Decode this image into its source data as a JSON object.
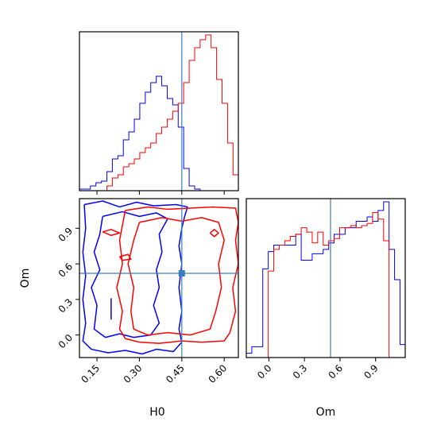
{
  "chart_data": {
    "type": "corner",
    "parameters": [
      "H0",
      "Om"
    ],
    "axis_labels": {
      "x": [
        "H0",
        "Om"
      ],
      "y": [
        "Om"
      ]
    },
    "truths": {
      "H0": 0.45,
      "Om": 0.52
    },
    "ranges": {
      "H0": [
        0.088,
        0.65
      ],
      "Om": [
        -0.19,
        1.15
      ]
    },
    "ticks": {
      "H0": {
        "values": [
          0.15,
          0.3,
          0.45,
          0.6
        ],
        "labels": [
          "0.15",
          "0.30",
          "0.45",
          "0.60"
        ]
      },
      "Om": {
        "values": [
          0.0,
          0.3,
          0.6,
          0.9
        ],
        "labels": [
          "0.0",
          "0.3",
          "0.6",
          "0.9"
        ]
      }
    },
    "colors": {
      "series_a": "#0000ff",
      "series_b": "#ff0000",
      "truth_line": "#3a7ebf"
    },
    "histograms": {
      "H0": {
        "edges": [
          0.088,
          0.1074,
          0.1268,
          0.1462,
          0.1656,
          0.185,
          0.2044,
          0.2238,
          0.2432,
          0.2626,
          0.282,
          0.3014,
          0.3208,
          0.3402,
          0.3596,
          0.379,
          0.3984,
          0.4178,
          0.4372,
          0.4566,
          0.476,
          0.4954,
          0.5148,
          0.5342,
          0.5536,
          0.573,
          0.5924,
          0.6118,
          0.6312,
          0.65
        ],
        "series": [
          {
            "color": "#0000ff",
            "counts": [
              1,
              1,
              3,
              5,
              6,
              12,
              20,
              22,
              32,
              37,
              45,
              55,
              62,
              68,
              72,
              66,
              58,
              54,
              40,
              14,
              3,
              1,
              0,
              0,
              0,
              0,
              0,
              0,
              0
            ]
          },
          {
            "color": "#ff0000",
            "counts": [
              0,
              0,
              0,
              0,
              0,
              3,
              8,
              10,
              15,
              17,
              20,
              24,
              27,
              30,
              36,
              40,
              45,
              50,
              55,
              68,
              82,
              90,
              95,
              98,
              90,
              70,
              55,
              30,
              10
            ]
          }
        ]
      },
      "Om": {
        "edges": [
          -0.19,
          -0.1437,
          -0.0974,
          -0.0511,
          -0.0048,
          0.0415,
          0.0878,
          0.1341,
          0.1804,
          0.2267,
          0.273,
          0.3193,
          0.3656,
          0.4119,
          0.4582,
          0.5045,
          0.5508,
          0.5971,
          0.6434,
          0.6897,
          0.736,
          0.7823,
          0.8286,
          0.8749,
          0.9212,
          0.9675,
          1.0138,
          1.0601,
          1.1064,
          1.15
        ],
        "series": [
          {
            "color": "#0000ff",
            "counts": [
              2,
              5,
              5,
              41,
              49,
              52,
              52,
              52,
              52,
              57,
              45,
              45,
              48,
              48,
              50,
              53,
              57,
              57,
              60,
              60,
              63,
              63,
              65,
              63,
              68,
              72,
              50,
              36,
              6
            ]
          },
          {
            "color": "#ff0000",
            "counts": [
              0,
              0,
              0,
              0,
              40,
              50,
              52,
              54,
              56,
              57,
              60,
              58,
              53,
              58,
              52,
              54,
              55,
              60,
              60,
              61,
              60,
              61,
              62,
              67,
              64,
              54,
              0,
              0,
              0
            ]
          }
        ]
      }
    },
    "contours": [
      {
        "series": "blue",
        "color": "#0000ff",
        "level": "outer",
        "points": [
          [
            0.105,
            1.1
          ],
          [
            0.17,
            1.13
          ],
          [
            0.23,
            1.08
          ],
          [
            0.29,
            1.12
          ],
          [
            0.35,
            1.09
          ],
          [
            0.43,
            1.1
          ],
          [
            0.47,
            1.08
          ],
          [
            0.46,
            1.0
          ],
          [
            0.45,
            0.9
          ],
          [
            0.44,
            0.75
          ],
          [
            0.45,
            0.6
          ],
          [
            0.44,
            0.4
          ],
          [
            0.45,
            0.2
          ],
          [
            0.44,
            0.05
          ],
          [
            0.45,
            -0.06
          ],
          [
            0.42,
            -0.14
          ],
          [
            0.36,
            -0.12
          ],
          [
            0.31,
            -0.16
          ],
          [
            0.25,
            -0.13
          ],
          [
            0.19,
            -0.15
          ],
          [
            0.13,
            -0.12
          ],
          [
            0.1,
            -0.05
          ],
          [
            0.11,
            0.1
          ],
          [
            0.1,
            0.3
          ],
          [
            0.11,
            0.5
          ],
          [
            0.1,
            0.7
          ],
          [
            0.11,
            0.9
          ],
          [
            0.105,
            1.1
          ]
        ]
      },
      {
        "series": "blue",
        "color": "#0000ff",
        "level": "inner",
        "points": [
          [
            0.17,
            1.0
          ],
          [
            0.24,
            1.04
          ],
          [
            0.3,
            1.0
          ],
          [
            0.36,
            1.03
          ],
          [
            0.4,
            0.98
          ],
          [
            0.37,
            0.85
          ],
          [
            0.38,
            0.7
          ],
          [
            0.36,
            0.55
          ],
          [
            0.37,
            0.4
          ],
          [
            0.35,
            0.25
          ],
          [
            0.37,
            0.1
          ],
          [
            0.34,
            0.0
          ],
          [
            0.28,
            -0.02
          ],
          [
            0.23,
            0.01
          ],
          [
            0.18,
            -0.02
          ],
          [
            0.14,
            0.05
          ],
          [
            0.15,
            0.25
          ],
          [
            0.13,
            0.4
          ],
          [
            0.16,
            0.55
          ],
          [
            0.14,
            0.7
          ],
          [
            0.16,
            0.85
          ],
          [
            0.17,
            1.0
          ]
        ]
      },
      {
        "series": "blue",
        "color": "#0000ff",
        "level": "stroke",
        "points": [
          [
            0.2,
            0.31
          ],
          [
            0.2,
            0.13
          ]
        ]
      },
      {
        "series": "red",
        "color": "#ff0000",
        "level": "outer",
        "points": [
          [
            0.25,
            1.05
          ],
          [
            0.33,
            1.08
          ],
          [
            0.4,
            1.06
          ],
          [
            0.48,
            1.07
          ],
          [
            0.56,
            1.08
          ],
          [
            0.64,
            1.07
          ],
          [
            0.65,
            0.95
          ],
          [
            0.64,
            0.8
          ],
          [
            0.65,
            0.6
          ],
          [
            0.63,
            0.4
          ],
          [
            0.64,
            0.2
          ],
          [
            0.62,
            0.02
          ],
          [
            0.6,
            -0.05
          ],
          [
            0.52,
            -0.06
          ],
          [
            0.45,
            -0.05
          ],
          [
            0.37,
            -0.07
          ],
          [
            0.3,
            -0.06
          ],
          [
            0.25,
            -0.03
          ],
          [
            0.23,
            0.05
          ],
          [
            0.24,
            0.2
          ],
          [
            0.22,
            0.4
          ],
          [
            0.24,
            0.6
          ],
          [
            0.23,
            0.8
          ],
          [
            0.25,
            1.05
          ]
        ]
      },
      {
        "series": "red",
        "color": "#ff0000",
        "level": "inner",
        "points": [
          [
            0.3,
            0.95
          ],
          [
            0.38,
            0.99
          ],
          [
            0.45,
            0.96
          ],
          [
            0.52,
            0.99
          ],
          [
            0.58,
            0.95
          ],
          [
            0.6,
            0.8
          ],
          [
            0.58,
            0.6
          ],
          [
            0.59,
            0.4
          ],
          [
            0.57,
            0.2
          ],
          [
            0.55,
            0.05
          ],
          [
            0.48,
            0.0
          ],
          [
            0.4,
            0.02
          ],
          [
            0.33,
            0.0
          ],
          [
            0.28,
            0.05
          ],
          [
            0.27,
            0.2
          ],
          [
            0.28,
            0.4
          ],
          [
            0.26,
            0.6
          ],
          [
            0.28,
            0.8
          ],
          [
            0.3,
            0.95
          ]
        ]
      },
      {
        "series": "red",
        "color": "#ff0000",
        "level": "island",
        "points": [
          [
            0.55,
            0.86
          ],
          [
            0.565,
            0.89
          ],
          [
            0.58,
            0.86
          ],
          [
            0.565,
            0.83
          ],
          [
            0.55,
            0.86
          ]
        ]
      },
      {
        "series": "red",
        "color": "#ff0000",
        "level": "island",
        "points": [
          [
            0.17,
            0.87
          ],
          [
            0.2,
            0.89
          ],
          [
            0.23,
            0.86
          ],
          [
            0.2,
            0.84
          ],
          [
            0.17,
            0.87
          ]
        ]
      },
      {
        "series": "red",
        "color": "#ff0000",
        "level": "island",
        "points": [
          [
            0.23,
            0.66
          ],
          [
            0.26,
            0.68
          ],
          [
            0.27,
            0.64
          ],
          [
            0.24,
            0.63
          ],
          [
            0.23,
            0.66
          ]
        ]
      }
    ]
  }
}
